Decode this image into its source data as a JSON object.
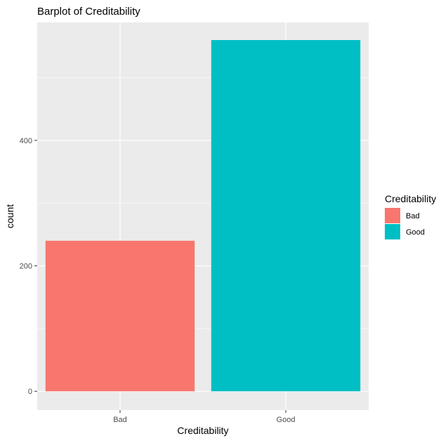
{
  "chart_data": {
    "type": "bar",
    "title": "Barplot of Creditability",
    "xlabel": "Creditability",
    "ylabel": "count",
    "categories": [
      "Bad",
      "Good"
    ],
    "values": [
      240,
      560
    ],
    "colors": [
      "#F8766D",
      "#00BFC4"
    ],
    "ylim": [
      -30,
      588
    ],
    "y_ticks": [
      0,
      200,
      400
    ],
    "y_tick_labels": [
      "0",
      "200",
      "400"
    ],
    "grid": true,
    "panel_background": "#EBEBEB",
    "grid_color": "#FFFFFF",
    "legend": {
      "title": "Creditability",
      "position": "right",
      "items": [
        {
          "label": "Bad",
          "color": "#F8766D"
        },
        {
          "label": "Good",
          "color": "#00BFC4"
        }
      ]
    }
  }
}
